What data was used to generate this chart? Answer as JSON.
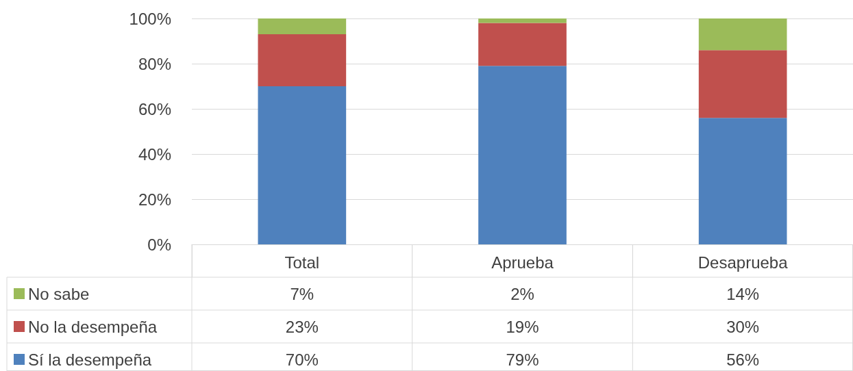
{
  "chart_data": {
    "type": "bar",
    "stacked": true,
    "categories": [
      "Total",
      "Aprueba",
      "Desaprueba"
    ],
    "series": [
      {
        "name": "Sí la desempeña",
        "color": "#4f81bd",
        "values": [
          70,
          79,
          56
        ],
        "value_labels": [
          "70%",
          "79%",
          "56%"
        ]
      },
      {
        "name": "No la desempeña",
        "color": "#c0504d",
        "values": [
          23,
          19,
          30
        ],
        "value_labels": [
          "23%",
          "19%",
          "30%"
        ]
      },
      {
        "name": "No sabe",
        "color": "#9bbb59",
        "values": [
          7,
          2,
          14
        ],
        "value_labels": [
          "7%",
          "2%",
          "14%"
        ]
      }
    ],
    "ylim": [
      0,
      100
    ],
    "yticks": [
      {
        "value": 0,
        "label": "0%"
      },
      {
        "value": 20,
        "label": "20%"
      },
      {
        "value": 40,
        "label": "40%"
      },
      {
        "value": 60,
        "label": "60%"
      },
      {
        "value": 80,
        "label": "80%"
      },
      {
        "value": 100,
        "label": "100%"
      }
    ],
    "grid": "y",
    "legend": "bottom left"
  }
}
